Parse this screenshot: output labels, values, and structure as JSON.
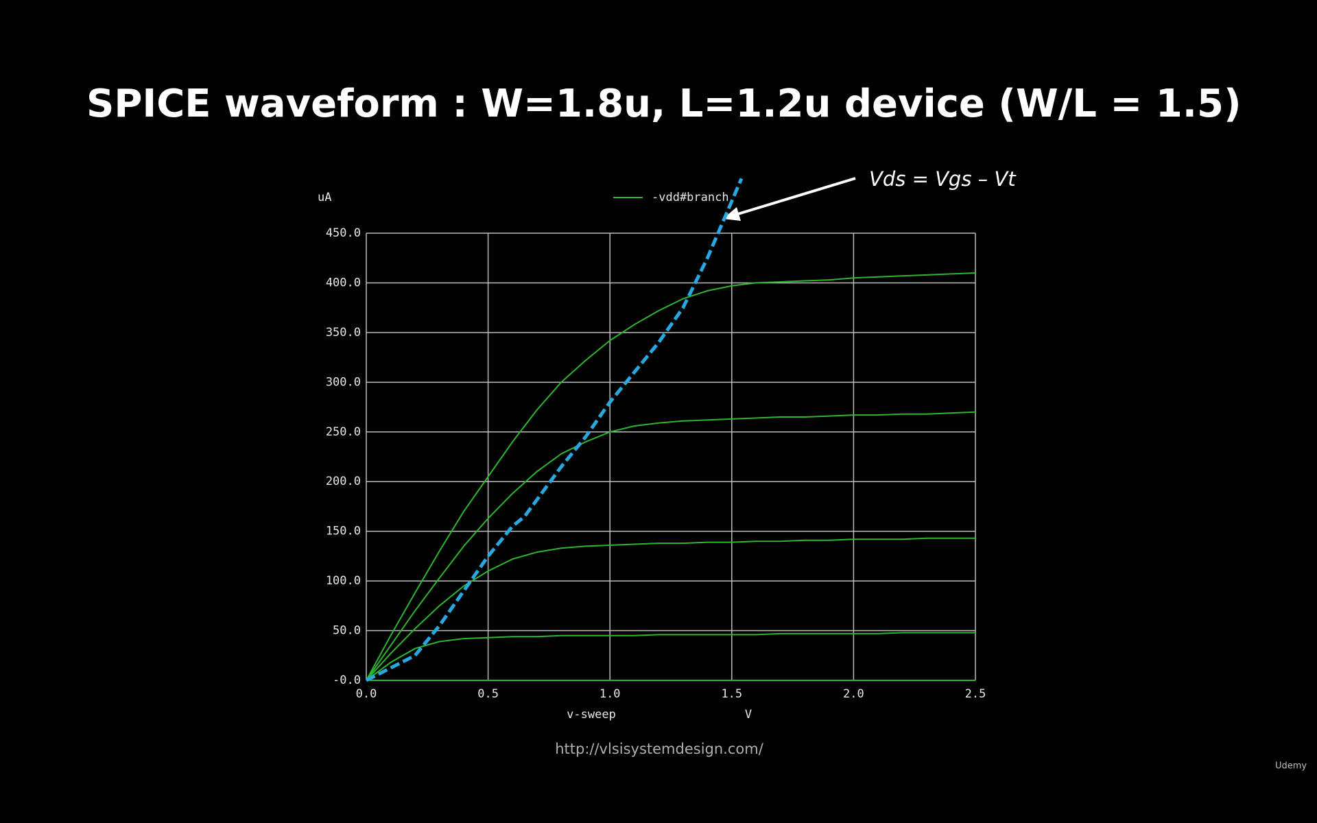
{
  "chart_data": {
    "type": "line",
    "title": "SPICE waveform : W=1.8u, L=1.2u device (W/L = 1.5)",
    "ylabel": "uA",
    "xlabel": "v-sweep",
    "xunit": "V",
    "annotation": "Vds = Vgs – Vt",
    "footer": "http://vlsisystemdesign.com/",
    "logo": "Udemy",
    "grid": true,
    "xlim": [
      0,
      2.5
    ],
    "ylim": [
      0,
      450
    ],
    "xticks": [
      {
        "value": 0,
        "label": "0.0"
      },
      {
        "value": 0.5,
        "label": "0.5"
      },
      {
        "value": 1,
        "label": "1.0"
      },
      {
        "value": 1.5,
        "label": "1.5"
      },
      {
        "value": 2,
        "label": "2.0"
      },
      {
        "value": 2.5,
        "label": "2.5"
      }
    ],
    "yticks": [
      {
        "value": 0,
        "label": "-0.0"
      },
      {
        "value": 50,
        "label": "50.0"
      },
      {
        "value": 100,
        "label": "100.0"
      },
      {
        "value": 150,
        "label": "150.0"
      },
      {
        "value": 200,
        "label": "200.0"
      },
      {
        "value": 250,
        "label": "250.0"
      },
      {
        "value": 300,
        "label": "300.0"
      },
      {
        "value": 350,
        "label": "350.0"
      },
      {
        "value": 400,
        "label": "400.0"
      },
      {
        "value": 450,
        "label": "450.0"
      }
    ],
    "x": [
      0,
      0.1,
      0.2,
      0.3,
      0.4,
      0.5,
      0.6,
      0.7,
      0.8,
      0.9,
      1.0,
      1.1,
      1.2,
      1.3,
      1.4,
      1.5,
      1.6,
      1.7,
      1.8,
      1.9,
      2.0,
      2.1,
      2.2,
      2.3,
      2.4,
      2.5
    ],
    "series": [
      {
        "name": "-vdd#branch",
        "color": "#2fb52f",
        "values": [
          0,
          45,
          88,
          130,
          170,
          205,
          240,
          272,
          300,
          322,
          342,
          358,
          372,
          384,
          392,
          397,
          400,
          401,
          402,
          403,
          405,
          406,
          407,
          408,
          409,
          410
        ]
      },
      {
        "color": "#2fb52f",
        "values": [
          0,
          35,
          70,
          103,
          135,
          163,
          188,
          210,
          228,
          240,
          250,
          256,
          259,
          261,
          262,
          263,
          264,
          265,
          265,
          266,
          267,
          267,
          268,
          268,
          269,
          270
        ]
      },
      {
        "color": "#2fb52f",
        "values": [
          0,
          27,
          52,
          75,
          95,
          110,
          122,
          129,
          133,
          135,
          136,
          137,
          138,
          138,
          139,
          139,
          140,
          140,
          141,
          141,
          142,
          142,
          142,
          143,
          143,
          143
        ]
      },
      {
        "color": "#2fb52f",
        "values": [
          0,
          18,
          32,
          39,
          42,
          43,
          44,
          44,
          45,
          45,
          45,
          45,
          46,
          46,
          46,
          46,
          46,
          47,
          47,
          47,
          47,
          47,
          48,
          48,
          48,
          48
        ]
      },
      {
        "color": "#2fb52f",
        "values": [
          0,
          0,
          0,
          0,
          0,
          0,
          0,
          0,
          0,
          0,
          0,
          0,
          0,
          0,
          0,
          0,
          0,
          0,
          0,
          0,
          0,
          0,
          0,
          0,
          0,
          0
        ]
      },
      {
        "color": "#29a8e0",
        "dashed": true,
        "x": [
          0,
          0.2,
          0.3,
          0.4,
          0.5,
          0.6,
          0.65,
          0.8,
          0.9,
          1.0,
          1.1,
          1.2,
          1.3,
          1.4,
          1.54
        ],
        "values": [
          0,
          25,
          55,
          90,
          125,
          155,
          165,
          215,
          245,
          280,
          310,
          340,
          375,
          425,
          505
        ]
      }
    ]
  }
}
